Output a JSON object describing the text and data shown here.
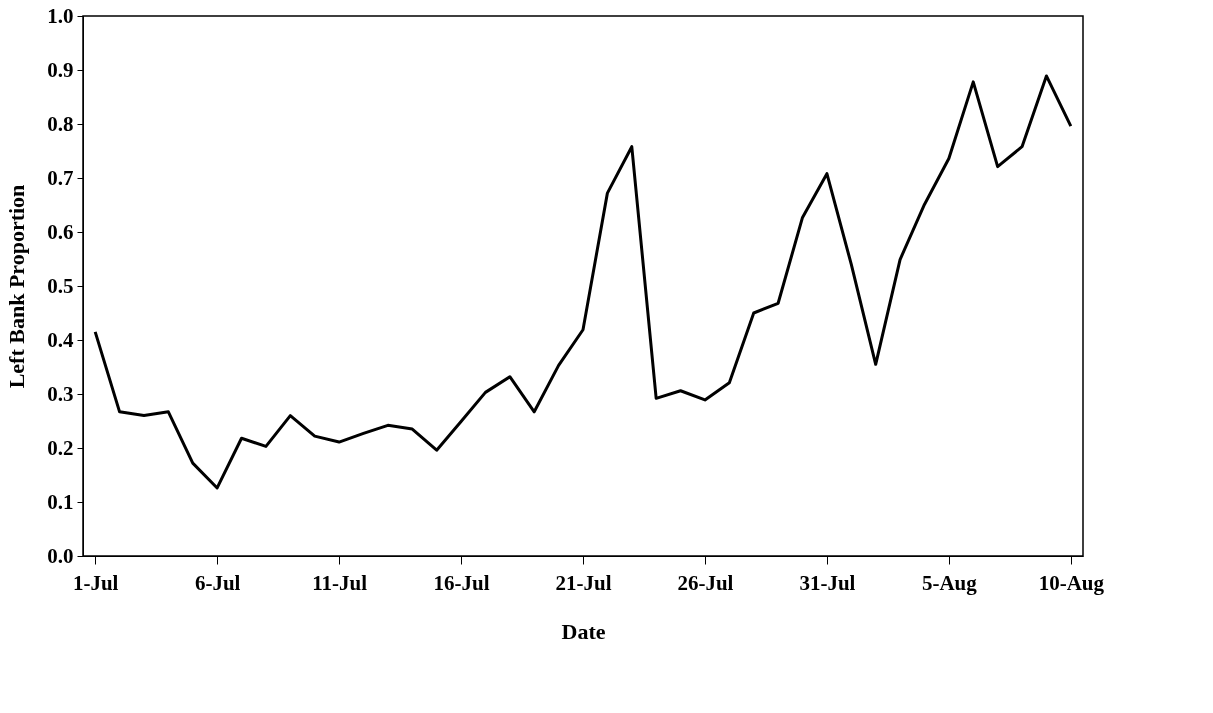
{
  "chart_data": {
    "type": "line",
    "xlabel": "Date",
    "ylabel": "Left Bank Proportion",
    "categories": [
      "1-Jul",
      null,
      null,
      null,
      null,
      "6-Jul",
      null,
      null,
      null,
      null,
      "11-Jul",
      null,
      null,
      null,
      null,
      "16-Jul",
      null,
      null,
      null,
      null,
      "21-Jul",
      null,
      null,
      null,
      null,
      "26-Jul",
      null,
      null,
      null,
      null,
      "31-Jul",
      null,
      null,
      null,
      null,
      "5-Aug",
      null,
      null,
      null,
      null,
      "10-Aug"
    ],
    "series": [
      {
        "color": "#000000",
        "values": [
          0.415,
          0.267,
          0.26,
          0.267,
          0.172,
          0.126,
          0.218,
          0.203,
          0.26,
          0.222,
          0.211,
          0.227,
          0.242,
          0.235,
          0.196,
          0.249,
          0.303,
          0.332,
          0.267,
          0.353,
          0.419,
          0.672,
          0.758,
          0.292,
          0.306,
          0.289,
          0.321,
          0.45,
          0.468,
          0.627,
          0.708,
          0.54,
          0.355,
          0.549,
          0.651,
          0.736,
          0.878,
          0.721,
          0.758,
          0.889,
          0.796
        ]
      }
    ],
    "ylim": [
      0,
      1
    ],
    "yticks": [
      {
        "value": 0,
        "label": "0.0"
      },
      0.1,
      0.2,
      0.3,
      0.4,
      0.5,
      0.6,
      0.7,
      0.8,
      0.9,
      {
        "value": 1,
        "label": "1.0"
      }
    ],
    "grid": false,
    "marker": "none",
    "line_style": "solid"
  }
}
